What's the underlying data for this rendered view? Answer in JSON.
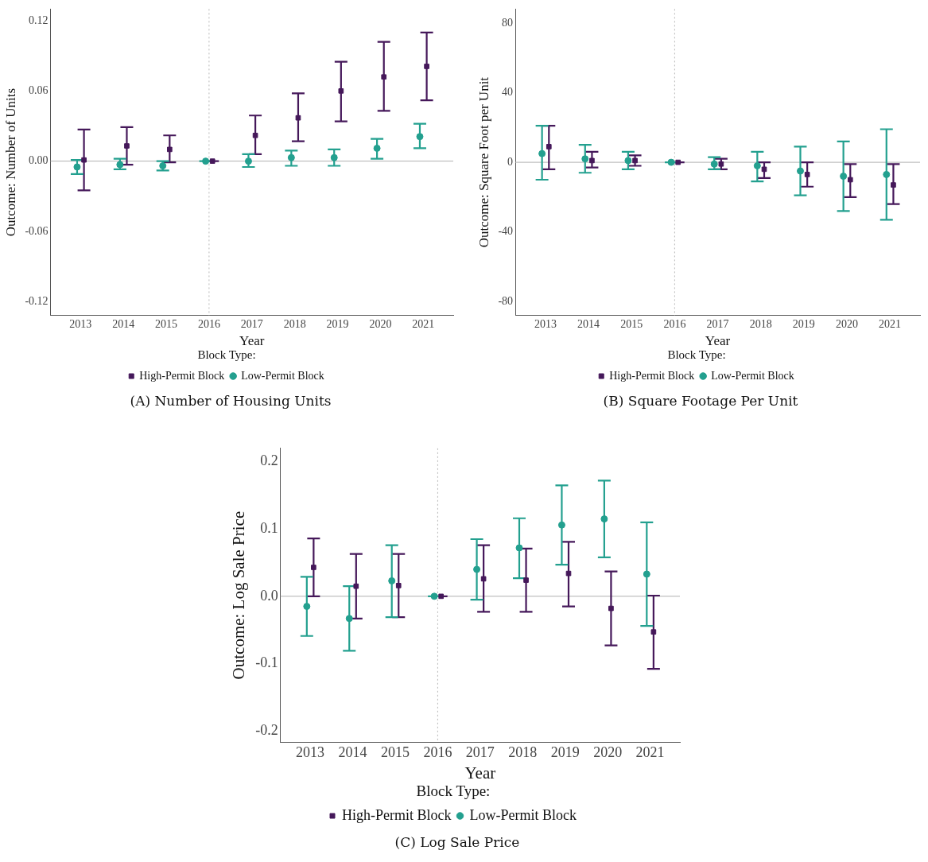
{
  "chart_data": [
    {
      "type": "scatter",
      "title": "(A) Number of Housing Units",
      "xlabel": "Year",
      "ylabel": "Outcome: Number of Units",
      "legend": "bottom",
      "legend_title": "Block Type:",
      "categories": [
        "2013",
        "2014",
        "2015",
        "2016",
        "2017",
        "2018",
        "2019",
        "2020",
        "2021"
      ],
      "ylim": [
        -0.132,
        0.13
      ],
      "yticks": [
        -0.12,
        -0.06,
        {
          "value": 0,
          "label": "0.00"
        },
        0.06,
        0.12
      ],
      "ref_lines": [
        {
          "axis": "y",
          "value": 0,
          "color": "#b0b0b0",
          "line_style": "solid"
        },
        {
          "axis": "x",
          "value": "2016",
          "color": "#b8b8b8",
          "line_style": "dotted"
        }
      ],
      "series": [
        {
          "name": "High-Permit Block",
          "color": "#45185a",
          "marker": "square",
          "values": [
            0.001,
            0.013,
            0.01,
            0,
            0.022,
            0.037,
            0.06,
            0.072,
            0.081
          ],
          "errors": [
            [
              -0.025,
              0.027
            ],
            [
              -0.003,
              0.029
            ],
            [
              -0.001,
              0.022
            ],
            0,
            [
              0.006,
              0.039
            ],
            [
              0.017,
              0.058
            ],
            [
              0.034,
              0.085
            ],
            [
              0.043,
              0.102
            ],
            [
              0.052,
              0.11
            ]
          ]
        },
        {
          "name": "Low-Permit Block",
          "color": "#23a08f",
          "marker": "circle",
          "values": [
            -0.005,
            -0.003,
            -0.004,
            0,
            0,
            0.003,
            0.003,
            0.011,
            0.021
          ],
          "errors": [
            [
              -0.011,
              0.001
            ],
            [
              -0.007,
              0.002
            ],
            [
              -0.008,
              0
            ],
            0,
            [
              -0.005,
              0.006
            ],
            [
              -0.004,
              0.009
            ],
            [
              -0.004,
              0.01
            ],
            [
              0.002,
              0.019
            ],
            [
              0.011,
              0.032
            ]
          ]
        }
      ]
    },
    {
      "type": "scatter",
      "title": "(B) Square Footage Per Unit",
      "xlabel": "Year",
      "ylabel": "Outcome: Square Foot per Unit",
      "legend": "bottom",
      "legend_title": "Block Type:",
      "categories": [
        "2013",
        "2014",
        "2015",
        "2016",
        "2017",
        "2018",
        "2019",
        "2020",
        "2021"
      ],
      "ylim": [
        -88,
        88
      ],
      "yticks": [
        -80,
        -40,
        0,
        40,
        80
      ],
      "ref_lines": [
        {
          "axis": "y",
          "value": 0,
          "color": "#b0b0b0",
          "line_style": "solid"
        },
        {
          "axis": "x",
          "value": "2016",
          "color": "#b8b8b8",
          "line_style": "dotted"
        }
      ],
      "series": [
        {
          "name": "High-Permit Block",
          "color": "#45185a",
          "marker": "square",
          "values": [
            9,
            1,
            1,
            0,
            -1,
            -4,
            -7,
            -10,
            -13
          ],
          "errors": [
            [
              -4,
              21
            ],
            [
              -3,
              6
            ],
            [
              -2,
              4
            ],
            0,
            [
              -4,
              2
            ],
            [
              -9,
              0
            ],
            [
              -14,
              0
            ],
            [
              -20,
              -1
            ],
            [
              -24,
              -1
            ]
          ]
        },
        {
          "name": "Low-Permit Block",
          "color": "#23a08f",
          "marker": "circle",
          "values": [
            5,
            2,
            1,
            0,
            -1,
            -2,
            -5,
            -8,
            -7
          ],
          "errors": [
            [
              -10,
              21
            ],
            [
              -6,
              10
            ],
            [
              -4,
              6
            ],
            0,
            [
              -4,
              3
            ],
            [
              -11,
              6
            ],
            [
              -19,
              9
            ],
            [
              -28,
              12
            ],
            [
              -33,
              19
            ]
          ]
        }
      ]
    },
    {
      "type": "scatter",
      "title": "(C) Log Sale Price",
      "xlabel": "Year",
      "ylabel": "Outcome: Log Sale Price",
      "legend": "bottom",
      "legend_title": "Block Type:",
      "categories": [
        "2013",
        "2014",
        "2015",
        "2016",
        "2017",
        "2018",
        "2019",
        "2020",
        "2021"
      ],
      "ylim": [
        -0.217,
        0.22
      ],
      "yticks": [
        -0.2,
        -0.1,
        {
          "value": 0,
          "label": "0.0"
        },
        0.1,
        0.2
      ],
      "ref_lines": [
        {
          "axis": "y",
          "value": 0,
          "color": "#b0b0b0",
          "line_style": "solid"
        },
        {
          "axis": "x",
          "value": "2016",
          "color": "#b8b8b8",
          "line_style": "dotted"
        }
      ],
      "series": [
        {
          "name": "High-Permit Block",
          "color": "#45185a",
          "marker": "square",
          "values": [
            0.043,
            0.015,
            0.016,
            0,
            0.026,
            0.024,
            0.034,
            -0.018,
            -0.053
          ],
          "errors": [
            [
              0,
              0.086
            ],
            [
              -0.033,
              0.063
            ],
            [
              -0.031,
              0.063
            ],
            0,
            [
              -0.023,
              0.076
            ],
            [
              -0.023,
              0.071
            ],
            [
              -0.015,
              0.081
            ],
            [
              -0.073,
              0.037
            ],
            [
              -0.108,
              0.001
            ]
          ]
        },
        {
          "name": "Low-Permit Block",
          "color": "#23a08f",
          "marker": "circle",
          "values": [
            -0.015,
            -0.033,
            0.023,
            0,
            0.04,
            0.072,
            0.106,
            0.115,
            0.033
          ],
          "errors": [
            [
              -0.059,
              0.029
            ],
            [
              -0.081,
              0.015
            ],
            [
              -0.031,
              0.076
            ],
            0,
            [
              -0.005,
              0.085
            ],
            [
              0.027,
              0.116
            ],
            [
              0.047,
              0.165
            ],
            [
              0.058,
              0.172
            ],
            [
              -0.044,
              0.11
            ]
          ]
        }
      ]
    }
  ]
}
